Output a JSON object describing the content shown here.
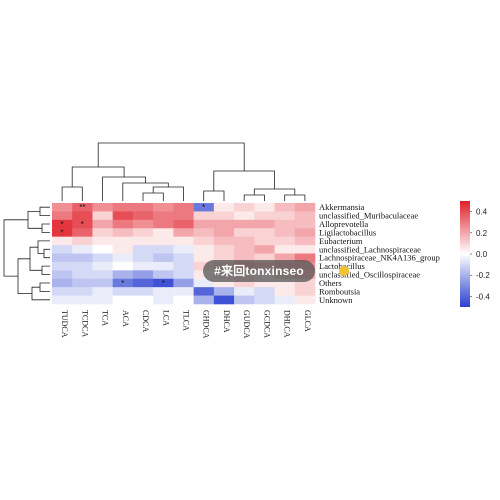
{
  "chart_data": {
    "type": "heatmap",
    "title": "",
    "columns": [
      "TUDCA",
      "TCDCA",
      "TCA",
      "ACA",
      "CDCA",
      "LCA",
      "TLCA",
      "GHDCA",
      "DHCA",
      "GUDCA",
      "GCDCA",
      "DHLCA",
      "GLCA"
    ],
    "rows": [
      "Akkermansia",
      "unclassified_Muribaculaceae",
      "Alloprevotella",
      "Ligilactobacillus",
      "Eubacterium",
      "unclassified_Lachnospiraceae",
      "Lachnospiraceae_NK4A136_group",
      "Lactobacillus",
      "unclassified_Oscillospiraceae",
      "Others",
      "Romboutsia",
      "Unknown"
    ],
    "values": [
      [
        0.25,
        0.35,
        0.25,
        0.3,
        0.3,
        0.25,
        0.3,
        -0.35,
        0.05,
        0.1,
        0.05,
        0.15,
        0.2
      ],
      [
        0.3,
        0.4,
        0.1,
        0.4,
        0.35,
        0.3,
        0.3,
        0.1,
        0.1,
        0.05,
        0.1,
        0.1,
        0.15
      ],
      [
        0.45,
        0.4,
        0.2,
        0.3,
        0.25,
        0.3,
        0.35,
        0.2,
        0.2,
        0.2,
        0.2,
        0.15,
        0.15
      ],
      [
        0.45,
        0.35,
        0.1,
        0.15,
        0.1,
        0.05,
        0.2,
        0.15,
        0.2,
        0.1,
        0.1,
        0.15,
        0.2
      ],
      [
        0.05,
        0.1,
        0.05,
        0.05,
        0.05,
        0.05,
        0.05,
        0.1,
        0.15,
        0.15,
        0.1,
        0.1,
        0.15
      ],
      [
        -0.1,
        -0.05,
        0.0,
        0.05,
        -0.1,
        -0.1,
        -0.05,
        0.05,
        0.1,
        0.15,
        0.2,
        0.05,
        0.05
      ],
      [
        -0.15,
        -0.15,
        -0.1,
        -0.05,
        -0.1,
        -0.15,
        -0.1,
        0.05,
        0.1,
        0.15,
        0.1,
        0.2,
        0.3
      ],
      [
        -0.1,
        -0.1,
        -0.05,
        0.0,
        -0.05,
        -0.05,
        -0.1,
        0.1,
        0.15,
        0.25,
        0.2,
        0.25,
        0.25
      ],
      [
        -0.15,
        -0.1,
        -0.1,
        -0.2,
        -0.25,
        -0.15,
        -0.1,
        0.05,
        0.1,
        0.1,
        0.05,
        0.15,
        0.2
      ],
      [
        -0.2,
        -0.15,
        -0.15,
        -0.35,
        -0.4,
        -0.45,
        -0.25,
        -0.05,
        0.05,
        0.1,
        0.05,
        0.05,
        0.1
      ],
      [
        -0.1,
        -0.1,
        -0.05,
        -0.1,
        -0.1,
        -0.05,
        -0.05,
        -0.4,
        -0.2,
        -0.05,
        -0.1,
        0.05,
        0.1
      ],
      [
        -0.05,
        -0.05,
        -0.05,
        0.0,
        0.0,
        -0.05,
        0.0,
        -0.2,
        -0.45,
        -0.15,
        -0.1,
        -0.05,
        0.05
      ]
    ],
    "stars": [
      {
        "row": 0,
        "col": 1,
        "text": "**"
      },
      {
        "row": 0,
        "col": 7,
        "text": "*"
      },
      {
        "row": 2,
        "col": 0,
        "text": "*"
      },
      {
        "row": 2,
        "col": 1,
        "text": "*"
      },
      {
        "row": 3,
        "col": 0,
        "text": "*"
      },
      {
        "row": 9,
        "col": 3,
        "text": "*"
      },
      {
        "row": 9,
        "col": 5,
        "text": "*"
      }
    ],
    "colorbar": {
      "min": -0.5,
      "max": 0.5,
      "colors": {
        "low": "#2a3fd0",
        "mid": "#ffffff",
        "high": "#e0202a"
      },
      "ticks": [
        "0.4",
        "0.2",
        "0.0",
        "-0.2",
        "-0.4"
      ],
      "tick_values": [
        0.4,
        0.2,
        0.0,
        -0.2,
        -0.4
      ]
    },
    "column_dendrogram": true,
    "row_dendrogram": true,
    "legend": "right"
  },
  "watermark": {
    "text": "#来回tonxinseo"
  }
}
